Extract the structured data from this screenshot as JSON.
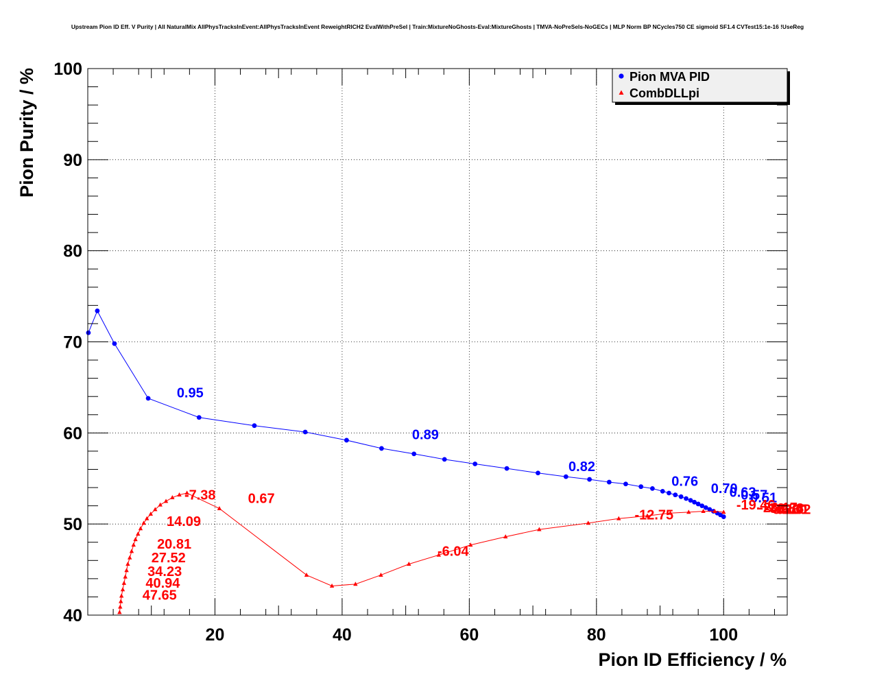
{
  "chart_data": {
    "type": "line",
    "title": "Upstream Pion ID Eff. V Purity | All NaturalMix AllPhysTracksInEvent:AllPhysTracksInEvent ReweightRICH2 EvalWithPreSel | Train:MixtureNoGhosts-Eval:MixtureGhosts | TMVA-NoPreSels-NoGECs | MLP Norm BP NCycles750 CE sigmoid SF1.4 CVTest15:1e-16 !UseReg",
    "xlabel": "Pion ID Efficiency / %",
    "ylabel": "Pion Purity / %",
    "xlim": [
      0,
      110
    ],
    "ylim": [
      40,
      100
    ],
    "xticks": [
      20,
      40,
      60,
      80,
      100
    ],
    "yticks": [
      40,
      50,
      60,
      70,
      80,
      90,
      100
    ],
    "grid": true,
    "legend_position": "top-right",
    "series": [
      {
        "name": "Pion MVA PID",
        "color": "#0000ff",
        "marker": "circle",
        "x": [
          0.1,
          1.5,
          4.2,
          9.5,
          17.5,
          26.2,
          34.2,
          40.7,
          46.2,
          51.3,
          56.1,
          60.9,
          65.9,
          70.8,
          75.2,
          78.9,
          82.0,
          84.6,
          87.0,
          88.8,
          90.4,
          91.4,
          92.4,
          93.3,
          94.1,
          94.8,
          95.4,
          96.0,
          96.6,
          97.2,
          97.8,
          98.4,
          99.0,
          99.5,
          100.0
        ],
        "y": [
          71.0,
          73.4,
          69.8,
          63.8,
          61.7,
          60.8,
          60.1,
          59.2,
          58.3,
          57.7,
          57.1,
          56.6,
          56.1,
          55.6,
          55.2,
          54.9,
          54.6,
          54.4,
          54.1,
          53.9,
          53.6,
          53.4,
          53.2,
          53.0,
          52.8,
          52.6,
          52.4,
          52.2,
          52.0,
          51.8,
          51.6,
          51.4,
          51.2,
          51.0,
          50.8
        ],
        "labels": [
          {
            "text": "0.95",
            "x": 14.0,
            "y": 63.9
          },
          {
            "text": "0.89",
            "x": 51.0,
            "y": 59.3
          },
          {
            "text": "0.82",
            "x": 75.6,
            "y": 55.8
          },
          {
            "text": "0.76",
            "x": 91.8,
            "y": 54.2
          },
          {
            "text": "0.70",
            "x": 98.0,
            "y": 53.4
          },
          {
            "text": "0.63",
            "x": 100.9,
            "y": 53.0
          },
          {
            "text": "0.57",
            "x": 102.7,
            "y": 52.7
          },
          {
            "text": "0.51",
            "x": 104.2,
            "y": 52.4
          }
        ]
      },
      {
        "name": "CombDLLpi",
        "color": "#ff0000",
        "marker": "triangle",
        "x": [
          5.0,
          5.1,
          5.2,
          5.3,
          5.5,
          5.7,
          5.9,
          6.1,
          6.3,
          6.6,
          6.9,
          7.2,
          7.5,
          7.9,
          8.3,
          8.8,
          9.3,
          9.9,
          10.6,
          11.4,
          12.3,
          13.3,
          14.4,
          15.6,
          20.7,
          34.4,
          38.4,
          42.1,
          46.1,
          50.5,
          55.2,
          60.2,
          65.7,
          71.0,
          78.7,
          83.5,
          88.0,
          91.6,
          94.5,
          96.8,
          98.6,
          100.0
        ],
        "y": [
          40.3,
          40.9,
          41.5,
          42.1,
          42.8,
          43.5,
          44.2,
          44.9,
          45.6,
          46.3,
          47.0,
          47.7,
          48.3,
          48.9,
          49.5,
          50.1,
          50.6,
          51.1,
          51.6,
          52.1,
          52.5,
          52.9,
          53.2,
          53.4,
          51.7,
          44.4,
          43.2,
          43.4,
          44.4,
          45.6,
          46.6,
          47.7,
          48.6,
          49.4,
          50.1,
          50.6,
          50.9,
          51.2,
          51.3,
          51.4,
          51.4,
          51.3
        ],
        "labels": [
          {
            "text": "-7.38",
            "x": 15.2,
            "y": 52.7
          },
          {
            "text": "0.67",
            "x": 25.2,
            "y": 52.3
          },
          {
            "text": "14.09",
            "x": 12.4,
            "y": 49.8
          },
          {
            "text": "20.81",
            "x": 10.9,
            "y": 47.3
          },
          {
            "text": "27.52",
            "x": 10.0,
            "y": 45.8
          },
          {
            "text": "34.23",
            "x": 9.4,
            "y": 44.3
          },
          {
            "text": "40.94",
            "x": 9.1,
            "y": 43.0
          },
          {
            "text": "47.65",
            "x": 8.6,
            "y": 41.7
          },
          {
            "text": "-6.04",
            "x": 55.0,
            "y": 46.5
          },
          {
            "text": "-12.75",
            "x": 86.0,
            "y": 50.5
          },
          {
            "text": "-19.46",
            "x": 102.0,
            "y": 51.6
          },
          {
            "text": "-26.17",
            "x": 105.5,
            "y": 51.3
          },
          {
            "text": "-32.88",
            "x": 106.5,
            "y": 51.2
          },
          {
            "text": "-39.60",
            "x": 107.0,
            "y": 51.1
          },
          {
            "text": "-46.31",
            "x": 107.3,
            "y": 51.1
          },
          {
            "text": "-53.02",
            "x": 107.6,
            "y": 51.1
          }
        ]
      }
    ]
  }
}
